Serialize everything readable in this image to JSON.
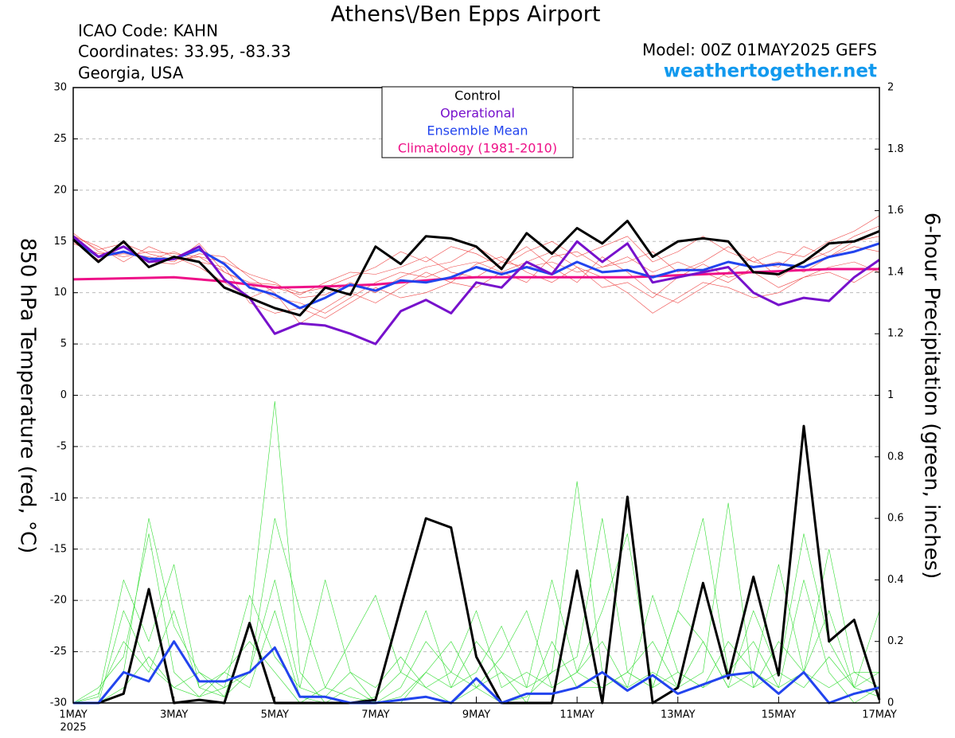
{
  "chart_data": {
    "type": "line",
    "title": "Athens\\/Ben Epps Airport",
    "info": [
      "ICAO Code: KAHN",
      "Coordinates: 33.95, -83.33",
      "Georgia, USA"
    ],
    "model": "Model: 00Z 01MAY2025 GEFS",
    "website": "weathertogether.net",
    "ylabel": "850 hPa Temperature (red, °C)",
    "y2label": "6-hour Precipitation (green, inches)",
    "x": [
      0,
      0.5,
      1,
      1.5,
      2,
      2.5,
      3,
      3.5,
      4,
      4.5,
      5,
      5.5,
      6,
      6.5,
      7,
      7.5,
      8,
      8.5,
      9,
      9.5,
      10,
      10.5,
      11,
      11.5,
      12,
      12.5,
      13,
      13.5,
      14,
      14.5,
      15,
      15.5,
      16
    ],
    "xlim": [
      0,
      16
    ],
    "xticks": [
      {
        "value": 0,
        "label": "1MAY"
      },
      {
        "value": 2,
        "label": "3MAY"
      },
      {
        "value": 4,
        "label": "5MAY"
      },
      {
        "value": 6,
        "label": "7MAY"
      },
      {
        "value": 8,
        "label": "9MAY"
      },
      {
        "value": 10,
        "label": "11MAY"
      },
      {
        "value": 12,
        "label": "13MAY"
      },
      {
        "value": 14,
        "label": "15MAY"
      },
      {
        "value": 16,
        "label": "17MAY"
      }
    ],
    "x_year_label": "2025",
    "ylim": [
      -30,
      30
    ],
    "yticks": [
      -30,
      -25,
      -20,
      -15,
      -10,
      -5,
      0,
      5,
      10,
      15,
      20,
      25,
      30
    ],
    "y2lim": [
      0,
      2
    ],
    "y2ticks": [
      0,
      0.2,
      0.4,
      0.6,
      0.8,
      1,
      1.2,
      1.4,
      1.6,
      1.8,
      2
    ],
    "grid": true,
    "series": [
      {
        "color": "#ee4444",
        "linewidth": 0.6,
        "values": [
          15.8,
          14,
          13.5,
          14,
          13.8,
          13.5,
          12,
          10.8,
          9.5,
          9,
          8,
          9.5,
          11,
          12,
          11.5,
          12.5,
          13,
          12,
          11,
          13.5,
          14,
          12.5,
          13,
          14,
          12,
          13,
          14.5,
          13,
          14,
          13.5,
          15,
          16,
          17.5
        ]
      },
      {
        "color": "#ee4444",
        "linewidth": 0.6,
        "values": [
          15,
          13.2,
          14.5,
          13,
          12.8,
          13.8,
          13.5,
          11.5,
          10,
          7,
          8.5,
          10,
          9,
          10.5,
          12,
          11,
          12.8,
          13.5,
          12,
          11,
          12.5,
          10.5,
          11,
          9.5,
          11.5,
          12.8,
          11.5,
          12,
          10.5,
          11.5,
          12.5,
          13,
          12
        ]
      },
      {
        "color": "#ee4444",
        "linewidth": 0.6,
        "values": [
          15.5,
          14.5,
          13,
          14.5,
          13.5,
          12.5,
          11,
          9.5,
          10.5,
          9.8,
          11,
          12,
          11.8,
          12.5,
          13.5,
          12,
          11.5,
          13,
          14.5,
          12.5,
          11,
          13.5,
          12,
          10,
          9,
          10.5,
          12,
          13.5,
          11.5,
          13,
          14,
          15.5,
          16.5
        ]
      },
      {
        "color": "#ee4444",
        "linewidth": 0.6,
        "values": [
          14.8,
          13.8,
          14,
          13.2,
          14,
          13,
          12.5,
          9,
          8,
          8.5,
          7.5,
          9,
          10.5,
          9.5,
          10,
          11,
          10.5,
          12,
          13,
          14,
          12.5,
          11.5,
          10,
          8,
          9.5,
          11,
          10.5,
          9.5,
          10,
          11.5,
          12,
          11,
          12.5
        ]
      },
      {
        "color": "#ee4444",
        "linewidth": 0.6,
        "values": [
          15.3,
          13.5,
          13.8,
          13.5,
          13,
          14.8,
          12,
          11,
          10.8,
          10,
          10.5,
          11.5,
          12.5,
          14,
          13,
          14.5,
          13.8,
          12.5,
          14,
          15,
          13.5,
          14.5,
          15.5,
          13,
          14,
          15.5,
          14,
          13,
          12.5,
          14.5,
          13.5,
          15,
          15.5
        ]
      },
      {
        "color": "#ee4444",
        "linewidth": 0.6,
        "values": [
          15.6,
          14.2,
          14.8,
          13.8,
          13.2,
          13.5,
          13,
          11.8,
          11,
          9.5,
          9.8,
          11,
          10,
          11.5,
          12.5,
          13,
          14.5,
          13,
          12.5,
          13,
          12,
          12.5,
          13.5,
          12,
          13,
          12,
          11,
          12.5,
          13,
          12,
          13.5,
          14.5,
          14
        ]
      },
      {
        "color": "#33dd33",
        "linewidth": 0.6,
        "axis": "y2",
        "values": [
          0,
          0,
          0.3,
          0.12,
          0.05,
          0.1,
          0.02,
          0.25,
          0.98,
          0.1,
          0,
          0.05,
          0,
          0,
          0.1,
          0.2,
          0.05,
          0,
          0.02,
          0.1,
          0.15,
          0.6,
          0.1,
          0.05,
          0.3,
          0.2,
          0.05,
          0.1,
          0.05,
          0.4,
          0.1,
          0,
          0.05
        ]
      },
      {
        "color": "#33dd33",
        "linewidth": 0.6,
        "axis": "y2",
        "values": [
          0,
          0.05,
          0.15,
          0.55,
          0.1,
          0.02,
          0.05,
          0.1,
          0.6,
          0.3,
          0.05,
          0.2,
          0.35,
          0.1,
          0.05,
          0,
          0.05,
          0.1,
          0,
          0.2,
          0.05,
          0.05,
          0.1,
          0.2,
          0.05,
          0.1,
          0.65,
          0.05,
          0.1,
          0.05,
          0.15,
          0.05,
          0.3
        ]
      },
      {
        "color": "#33dd33",
        "linewidth": 0.6,
        "axis": "y2",
        "values": [
          0,
          0.02,
          0.4,
          0.2,
          0.45,
          0.05,
          0.1,
          0.05,
          0.3,
          0.02,
          0,
          0,
          0.02,
          0.1,
          0.3,
          0.05,
          0.1,
          0.25,
          0.05,
          0.1,
          0.72,
          0.1,
          0.05,
          0.35,
          0.1,
          0.05,
          0.1,
          0.2,
          0.05,
          0.1,
          0.5,
          0.1,
          0.05
        ]
      },
      {
        "color": "#33dd33",
        "linewidth": 0.6,
        "axis": "y2",
        "values": [
          0,
          0,
          0.1,
          0.6,
          0.25,
          0.1,
          0.05,
          0.35,
          0.15,
          0.05,
          0.4,
          0.1,
          0,
          0.05,
          0.2,
          0.1,
          0.3,
          0.05,
          0.1,
          0.05,
          0.1,
          0.3,
          0.55,
          0.05,
          0.1,
          0.05,
          0.2,
          0.1,
          0.45,
          0.1,
          0.05,
          0.1,
          0.1
        ]
      },
      {
        "color": "#33dd33",
        "linewidth": 0.6,
        "axis": "y2",
        "values": [
          0,
          0.03,
          0.2,
          0.1,
          0.3,
          0.05,
          0.02,
          0.1,
          0.4,
          0.05,
          0.02,
          0.1,
          0.05,
          0.15,
          0.05,
          0.1,
          0.05,
          0.15,
          0.3,
          0.05,
          0.1,
          0.05,
          0.1,
          0.05,
          0.3,
          0.6,
          0.1,
          0.05,
          0.2,
          0.1,
          0.3,
          0.05,
          0.02
        ]
      },
      {
        "color": "#33dd33",
        "linewidth": 0.6,
        "axis": "y2",
        "values": [
          0,
          0,
          0.05,
          0.15,
          0.05,
          0.02,
          0.1,
          0.2,
          0.1,
          0,
          0.05,
          0.02,
          0,
          0.02,
          0.1,
          0.05,
          0.2,
          0.1,
          0.05,
          0.4,
          0.1,
          0.2,
          0.05,
          0.1,
          0.05,
          0.2,
          0.05,
          0.3,
          0.1,
          0.55,
          0.2,
          0.05,
          0.1
        ]
      },
      {
        "color": "#000000",
        "linewidth": 3,
        "axis": "y2",
        "values": [
          0,
          0,
          0.03,
          0.37,
          0,
          0.01,
          0,
          0.26,
          0,
          0,
          0,
          0,
          0.01,
          0.31,
          0.6,
          0.57,
          0.15,
          0,
          0,
          0,
          0.43,
          0,
          0.67,
          0,
          0.05,
          0.39,
          0.08,
          0.41,
          0.09,
          0.9,
          0.2,
          0.27,
          0.01
        ]
      },
      {
        "color": "#2244ee",
        "linewidth": 3,
        "axis": "y2",
        "values": [
          0,
          0,
          0.1,
          0.07,
          0.2,
          0.07,
          0.07,
          0.1,
          0.18,
          0.02,
          0.02,
          0,
          0,
          0.01,
          0.02,
          0,
          0.08,
          0,
          0.03,
          0.03,
          0.05,
          0.1,
          0.04,
          0.09,
          0.03,
          0.06,
          0.09,
          0.1,
          0.03,
          0.1,
          0,
          0.03,
          0.05
        ]
      },
      {
        "name": "Climatology (1981-2010)",
        "color": "#ee1188",
        "linewidth": 3,
        "values": [
          11.3,
          11.35,
          11.4,
          11.45,
          11.5,
          11.3,
          11.1,
          10.8,
          10.5,
          10.55,
          10.6,
          10.7,
          10.8,
          11,
          11.2,
          11.4,
          11.5,
          11.5,
          11.5,
          11.5,
          11.5,
          11.5,
          11.5,
          11.6,
          11.7,
          11.8,
          11.9,
          12,
          12.1,
          12.2,
          12.3,
          12.3,
          12.3
        ]
      },
      {
        "name": "Ensemble Mean",
        "color": "#2244ee",
        "linewidth": 3,
        "values": [
          15.2,
          13.5,
          14,
          13.3,
          13.3,
          14.2,
          12.8,
          10.5,
          9.8,
          8.5,
          9.5,
          10.8,
          10.2,
          11.2,
          11,
          11.5,
          12.5,
          11.8,
          12.5,
          11.8,
          13,
          12,
          12.2,
          11.5,
          12.2,
          12.2,
          13,
          12.5,
          12.8,
          12.5,
          13.5,
          14,
          14.8
        ]
      },
      {
        "name": "Operational",
        "color": "#7711cc",
        "linewidth": 3,
        "values": [
          15.5,
          13.5,
          14.5,
          13,
          13.3,
          14.5,
          11.3,
          9.5,
          6,
          7,
          6.8,
          6,
          5,
          8.2,
          9.3,
          8,
          11,
          10.5,
          13,
          11.8,
          15,
          13,
          14.8,
          11,
          11.5,
          12,
          12.5,
          10,
          8.8,
          9.5,
          9.2,
          11.5,
          13.2
        ]
      },
      {
        "name": "Control",
        "color": "#000000",
        "linewidth": 3,
        "values": [
          15.2,
          13,
          15,
          12.5,
          13.5,
          13,
          10.5,
          9.5,
          8.5,
          7.8,
          10.5,
          9.8,
          14.5,
          12.8,
          15.5,
          15.3,
          14.5,
          12.3,
          15.8,
          13.8,
          16.3,
          14.8,
          17,
          13.5,
          15,
          15.3,
          15,
          12,
          11.8,
          13,
          14.8,
          15,
          16
        ]
      }
    ]
  }
}
